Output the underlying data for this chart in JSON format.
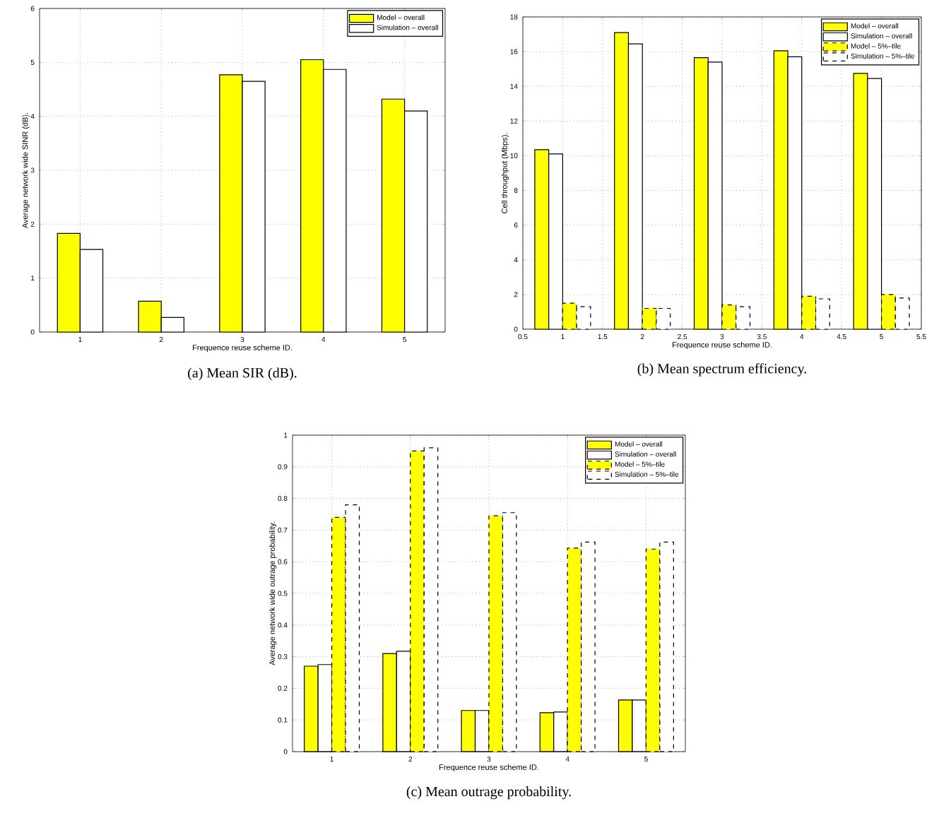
{
  "chart_data": [
    {
      "type": "bar",
      "xlabel": "Frequence reuse scheme ID.",
      "ylabel": "Average network wide SINR (dB).",
      "categories": [
        "1",
        "2",
        "3",
        "4",
        "5"
      ],
      "ylim": [
        0,
        6
      ],
      "yticks": [
        0,
        1,
        2,
        3,
        4,
        5,
        6
      ],
      "grid": true,
      "legend": "top right",
      "annotations": [
        "(a) Mean SIR (dB)."
      ],
      "series": [
        {
          "name": "Model – overall",
          "color": "#ffff00",
          "values": [
            1.83,
            0.57,
            4.77,
            5.05,
            4.32
          ]
        },
        {
          "name": "Simulation – overall",
          "color": "#ffffff",
          "values": [
            1.53,
            0.27,
            4.65,
            4.87,
            4.1
          ]
        }
      ]
    },
    {
      "type": "bar",
      "xlabel": "Frequence reuse scheme ID.",
      "ylabel": "Cell throughput (Mbps).",
      "x": [
        1,
        2,
        3,
        4,
        5
      ],
      "xlim": [
        0.5,
        5.5
      ],
      "xticks": [
        0.5,
        1,
        1.5,
        2,
        2.5,
        3,
        3.5,
        4,
        4.5,
        5,
        5.5
      ],
      "ylim": [
        0,
        18
      ],
      "yticks": [
        0,
        2,
        4,
        6,
        8,
        10,
        12,
        14,
        16,
        18
      ],
      "grid": true,
      "legend": "top right",
      "annotations": [
        "(b) Mean spectrum efficiency."
      ],
      "series": [
        {
          "name": "Model – overall",
          "color": "#ffff00",
          "values": [
            10.35,
            17.1,
            15.65,
            16.05,
            14.75
          ]
        },
        {
          "name": "Simulation – overall",
          "color": "#ffffff",
          "values": [
            10.1,
            16.45,
            15.4,
            15.7,
            14.45
          ]
        },
        {
          "name": "Model – 5%–tile",
          "color": "#ffff00",
          "line_style": "dashed",
          "values": [
            1.5,
            1.2,
            1.4,
            1.9,
            2.0
          ]
        },
        {
          "name": "Simulation – 5%–tile",
          "color": "#ffffff",
          "line_style": "dashed",
          "values": [
            1.3,
            1.2,
            1.3,
            1.75,
            1.8
          ]
        }
      ]
    },
    {
      "type": "bar",
      "xlabel": "Frequence reuse scheme ID.",
      "ylabel": "Average network wide outrage probability.",
      "categories": [
        "1",
        "2",
        "3",
        "4",
        "5"
      ],
      "ylim": [
        0,
        1
      ],
      "yticks": [
        0,
        0.1,
        0.2,
        0.3,
        0.4,
        0.5,
        0.6,
        0.7,
        0.8,
        0.9,
        1
      ],
      "grid": true,
      "legend": "top right",
      "annotations": [
        "(c) Mean outrage probability."
      ],
      "series": [
        {
          "name": "Model – overall",
          "color": "#ffff00",
          "values": [
            0.27,
            0.31,
            0.13,
            0.123,
            0.163
          ]
        },
        {
          "name": "Simulation – overall",
          "color": "#ffffff",
          "values": [
            0.275,
            0.317,
            0.13,
            0.125,
            0.163
          ]
        },
        {
          "name": "Model – 5%–tile",
          "color": "#ffff00",
          "line_style": "dashed",
          "values": [
            0.74,
            0.95,
            0.745,
            0.643,
            0.64
          ]
        },
        {
          "name": "Simulation – 5%–tile",
          "color": "#ffffff",
          "line_style": "dashed",
          "values": [
            0.78,
            0.96,
            0.755,
            0.662,
            0.662
          ]
        }
      ]
    }
  ]
}
